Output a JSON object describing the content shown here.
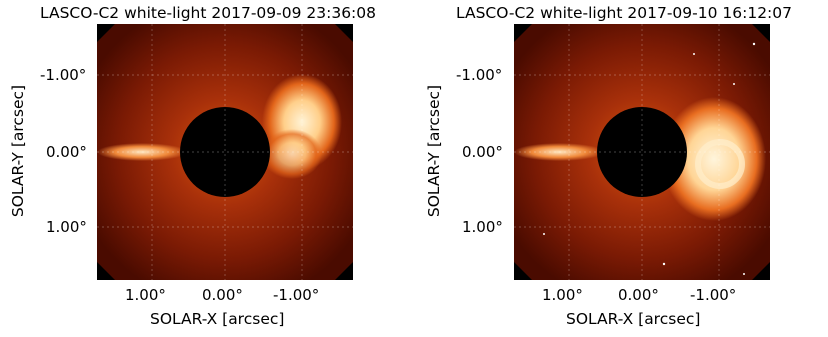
{
  "panels": [
    {
      "title": "LASCO-C2 white-light 2017-09-09 23:36:08",
      "xlabel": "SOLAR-X [arcsec]",
      "ylabel": "SOLAR-Y [arcsec]",
      "xticks": [
        "1.00°",
        "0.00°",
        "-1.00°"
      ],
      "yticks": [
        "-1.00°",
        "0.00°",
        "1.00°"
      ]
    },
    {
      "title": "LASCO-C2 white-light 2017-09-10 16:12:07",
      "xlabel": "SOLAR-X [arcsec]",
      "ylabel": "SOLAR-Y [arcsec]",
      "xticks": [
        "1.00°",
        "0.00°",
        "-1.00°"
      ],
      "yticks": [
        "-1.00°",
        "0.00°",
        "1.00°"
      ]
    }
  ],
  "colors": {
    "corona_dark": "#5a0e00",
    "corona_mid": "#b83a06",
    "corona_bright": "#ffd7a0",
    "occulter": "#000000"
  }
}
